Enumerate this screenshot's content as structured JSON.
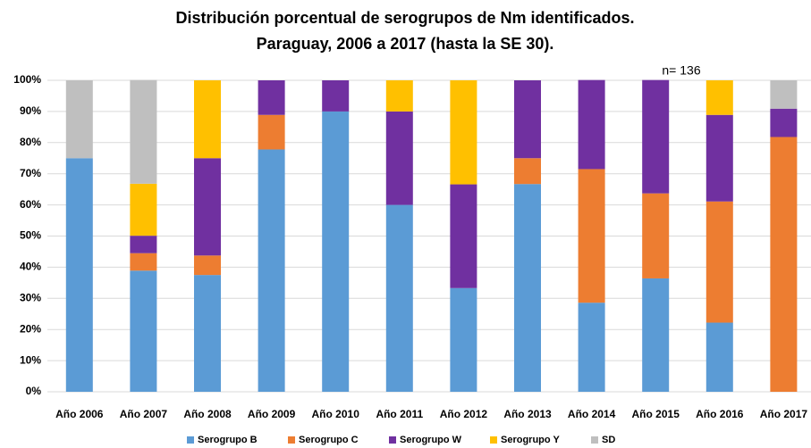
{
  "chart_data": {
    "type": "stacked_bar",
    "title": [
      "Distribución porcentual de serogrupos de Nm identificados.",
      "Paraguay, 2006 a 2017 (hasta la SE 30)."
    ],
    "annotation": "n= 136",
    "categories": [
      "Año 2006",
      "Año 2007",
      "Año 2008",
      "Año 2009",
      "Año 2010",
      "Año 2011",
      "Año 2012",
      "Año 2013",
      "Año 2014",
      "Año 2015",
      "Año 2016",
      "Año 2017"
    ],
    "series": [
      {
        "name": "Serogrupo B",
        "color": "#5b9bd5",
        "values": [
          75,
          38.9,
          37.5,
          77.8,
          90,
          60,
          33.3,
          66.7,
          28.6,
          36.4,
          22.2,
          0
        ]
      },
      {
        "name": "Serogrupo C",
        "color": "#ed7d31",
        "values": [
          0,
          5.6,
          6.25,
          11.1,
          0,
          0,
          0,
          8.3,
          42.9,
          27.3,
          38.9,
          81.8
        ]
      },
      {
        "name": "Serogrupo W",
        "color": "#7030a0",
        "values": [
          0,
          5.6,
          31.25,
          11.1,
          10,
          30,
          33.3,
          25,
          28.6,
          36.4,
          27.8,
          9.1
        ]
      },
      {
        "name": "Serogrupo Y",
        "color": "#ffc000",
        "values": [
          0,
          16.7,
          25,
          0,
          0,
          10,
          33.4,
          0,
          0,
          0,
          11.1,
          0
        ]
      },
      {
        "name": "SD",
        "color": "#bfbfbf",
        "values": [
          25,
          33.3,
          0,
          0,
          0,
          0,
          0,
          0,
          0,
          0,
          0,
          9.1
        ]
      }
    ],
    "ylim": [
      0,
      100
    ],
    "yticks": [
      {
        "value": 0,
        "label": "0%"
      },
      {
        "value": 10,
        "label": "10%"
      },
      {
        "value": 20,
        "label": "20%"
      },
      {
        "value": 30,
        "label": "30%"
      },
      {
        "value": 40,
        "label": "40%"
      },
      {
        "value": 50,
        "label": "50%"
      },
      {
        "value": 60,
        "label": "60%"
      },
      {
        "value": 70,
        "label": "70%"
      },
      {
        "value": 80,
        "label": "80%"
      },
      {
        "value": 90,
        "label": "90%"
      },
      {
        "value": 100,
        "label": "100%"
      }
    ],
    "grid": true,
    "legend": "bottom"
  }
}
